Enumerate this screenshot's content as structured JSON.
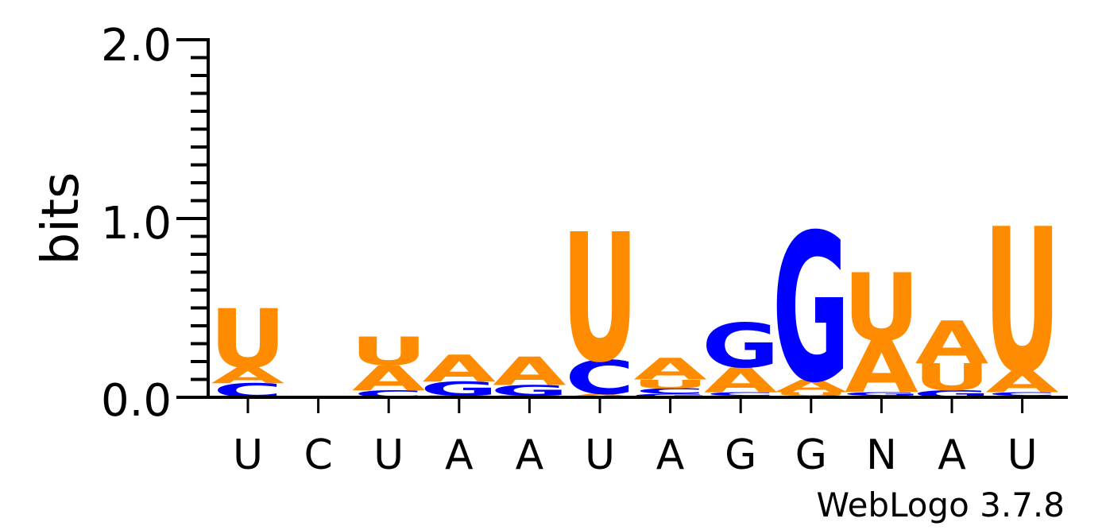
{
  "chart_data": {
    "type": "sequence-logo",
    "ylabel": "bits",
    "ylim": [
      0,
      2
    ],
    "yticks": [
      "0.0",
      "1.0",
      "2.0"
    ],
    "positions": [
      "U",
      "C",
      "U",
      "A",
      "A",
      "U",
      "A",
      "G",
      "G",
      "N",
      "A",
      "U"
    ],
    "stacks": [
      [
        {
          "letter": "C",
          "bits": 0.08
        },
        {
          "letter": "A",
          "bits": 0.09
        },
        {
          "letter": "U",
          "bits": 0.33
        }
      ],
      [],
      [
        {
          "letter": "C",
          "bits": 0.04
        },
        {
          "letter": "A",
          "bits": 0.14
        },
        {
          "letter": "U",
          "bits": 0.16
        }
      ],
      [
        {
          "letter": "U",
          "bits": 0.01
        },
        {
          "letter": "G",
          "bits": 0.08
        },
        {
          "letter": "A",
          "bits": 0.15
        }
      ],
      [
        {
          "letter": "U",
          "bits": 0.01
        },
        {
          "letter": "G",
          "bits": 0.06
        },
        {
          "letter": "A",
          "bits": 0.16
        }
      ],
      [
        {
          "letter": "A",
          "bits": 0.02
        },
        {
          "letter": "C",
          "bits": 0.19
        },
        {
          "letter": "U",
          "bits": 0.72
        }
      ],
      [
        {
          "letter": "G",
          "bits": 0.02
        },
        {
          "letter": "C",
          "bits": 0.03
        },
        {
          "letter": "U",
          "bits": 0.05
        },
        {
          "letter": "A",
          "bits": 0.12
        }
      ],
      [
        {
          "letter": "U",
          "bits": 0.01
        },
        {
          "letter": "C",
          "bits": 0.02
        },
        {
          "letter": "A",
          "bits": 0.14
        },
        {
          "letter": "G",
          "bits": 0.25
        }
      ],
      [
        {
          "letter": "C",
          "bits": 0.01
        },
        {
          "letter": "U",
          "bits": 0.02
        },
        {
          "letter": "A",
          "bits": 0.07
        },
        {
          "letter": "G",
          "bits": 0.83
        }
      ],
      [
        {
          "letter": "C",
          "bits": 0.01
        },
        {
          "letter": "G",
          "bits": 0.02
        },
        {
          "letter": "A",
          "bits": 0.29
        },
        {
          "letter": "U",
          "bits": 0.38
        }
      ],
      [
        {
          "letter": "G",
          "bits": 0.04
        },
        {
          "letter": "U",
          "bits": 0.15
        },
        {
          "letter": "A",
          "bits": 0.24
        }
      ],
      [
        {
          "letter": "G",
          "bits": 0.01
        },
        {
          "letter": "C",
          "bits": 0.02
        },
        {
          "letter": "A",
          "bits": 0.12
        },
        {
          "letter": "U",
          "bits": 0.81
        }
      ]
    ],
    "colors": {
      "A": "#ff8c00",
      "U": "#ff8c00",
      "G": "#0000ff",
      "C": "#0000ff"
    },
    "credit": "WebLogo 3.7.8"
  }
}
